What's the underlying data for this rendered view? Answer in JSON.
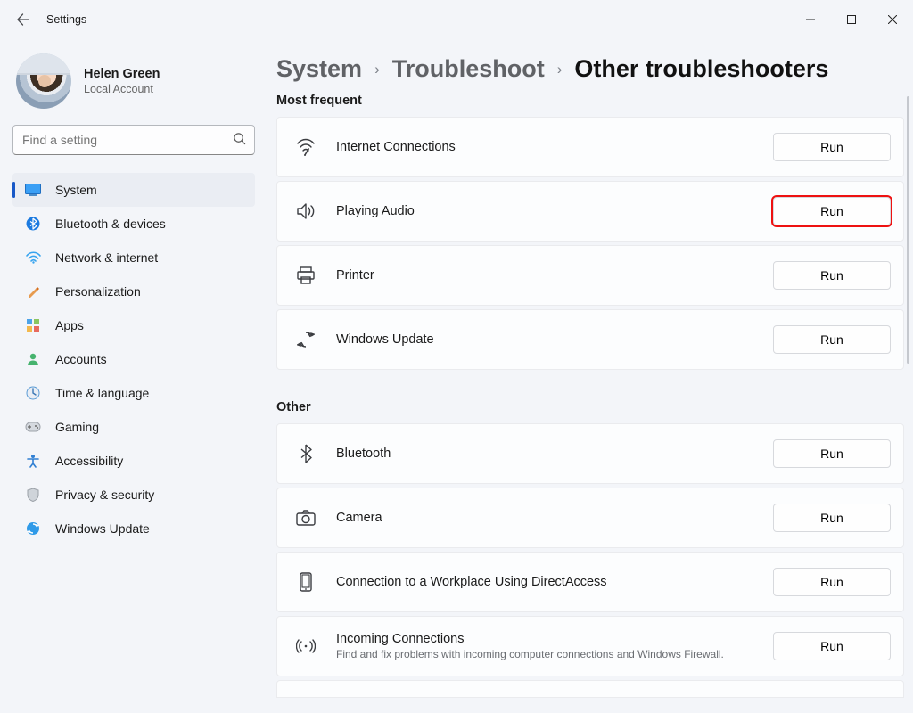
{
  "window": {
    "title": "Settings"
  },
  "user": {
    "name": "Helen Green",
    "sub": "Local Account"
  },
  "search": {
    "placeholder": "Find a setting"
  },
  "nav": [
    {
      "key": "system",
      "label": "System",
      "active": true
    },
    {
      "key": "bluetooth-devices",
      "label": "Bluetooth & devices",
      "active": false
    },
    {
      "key": "network",
      "label": "Network & internet",
      "active": false
    },
    {
      "key": "personalization",
      "label": "Personalization",
      "active": false
    },
    {
      "key": "apps",
      "label": "Apps",
      "active": false
    },
    {
      "key": "accounts",
      "label": "Accounts",
      "active": false
    },
    {
      "key": "time-language",
      "label": "Time & language",
      "active": false
    },
    {
      "key": "gaming",
      "label": "Gaming",
      "active": false
    },
    {
      "key": "accessibility",
      "label": "Accessibility",
      "active": false
    },
    {
      "key": "privacy-security",
      "label": "Privacy & security",
      "active": false
    },
    {
      "key": "windows-update",
      "label": "Windows Update",
      "active": false
    }
  ],
  "breadcrumbs": {
    "a": "System",
    "b": "Troubleshoot",
    "c": "Other troubleshooters"
  },
  "sections": {
    "frequent_head": "Most frequent",
    "other_head": "Other",
    "run_label": "Run"
  },
  "frequent": [
    {
      "key": "internet",
      "title": "Internet Connections",
      "highlight": false
    },
    {
      "key": "audio",
      "title": "Playing Audio",
      "highlight": true
    },
    {
      "key": "printer",
      "title": "Printer",
      "highlight": false
    },
    {
      "key": "winupdate",
      "title": "Windows Update",
      "highlight": false
    }
  ],
  "other": [
    {
      "key": "bluetooth",
      "title": "Bluetooth"
    },
    {
      "key": "camera",
      "title": "Camera"
    },
    {
      "key": "directaccess",
      "title": "Connection to a Workplace Using DirectAccess"
    },
    {
      "key": "incoming",
      "title": "Incoming Connections",
      "sub": "Find and fix problems with incoming computer connections and Windows Firewall."
    }
  ],
  "colors": {
    "accent": "#1858c7",
    "highlight": "#e11",
    "bg": "#f3f5f9",
    "card": "#fcfdfe",
    "border": "#eaebee"
  }
}
